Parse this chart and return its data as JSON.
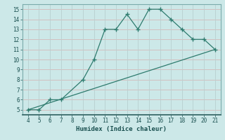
{
  "curve_x": [
    4,
    5,
    6,
    7,
    9,
    10,
    11,
    12,
    13,
    14,
    15,
    16,
    17,
    18,
    19,
    20,
    21
  ],
  "curve_y": [
    5,
    5,
    6,
    6,
    8,
    10,
    13,
    13,
    14.5,
    13,
    15,
    15,
    14,
    13,
    12,
    12,
    11
  ],
  "line_x": [
    4,
    21
  ],
  "line_y": [
    5,
    11
  ],
  "color": "#2e7b6e",
  "bg_color": "#cce8e8",
  "grid_color_h": "#d4b8b8",
  "grid_color_v": "#b8d0d0",
  "xlabel": "Humidex (Indice chaleur)",
  "xlim": [
    3.5,
    21.5
  ],
  "ylim": [
    4.5,
    15.5
  ],
  "xticks": [
    4,
    5,
    6,
    7,
    8,
    9,
    10,
    11,
    12,
    13,
    14,
    15,
    16,
    17,
    18,
    19,
    20,
    21
  ],
  "yticks": [
    5,
    6,
    7,
    8,
    9,
    10,
    11,
    12,
    13,
    14,
    15
  ],
  "tick_fontsize": 5.5,
  "xlabel_fontsize": 6.5
}
